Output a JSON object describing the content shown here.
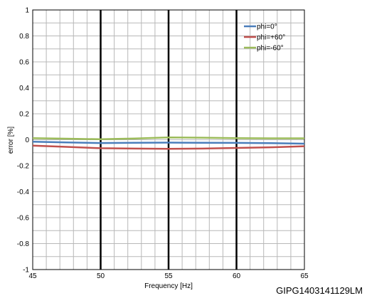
{
  "figure_id": "GIPG1403141129LM",
  "colors": {
    "phi_0": "#4a7ebb",
    "phi_plus60": "#c0504d",
    "phi_minus60": "#9bbb59",
    "major_grid": "#000000",
    "minor_grid": "#b8b8b8"
  },
  "chart_data": {
    "type": "line",
    "title": "",
    "xlabel": "Frequency [Hz]",
    "ylabel": "error [%]",
    "xlim": [
      45,
      65
    ],
    "ylim": [
      -1,
      1
    ],
    "x_ticks": [
      45,
      50,
      55,
      60,
      65
    ],
    "x_tick_labels": [
      "45",
      "50",
      "55",
      "60",
      "65"
    ],
    "y_ticks": [
      1,
      0.8,
      0.6,
      0.4,
      0.2,
      0,
      -0.2,
      -0.4,
      -0.6,
      -0.8,
      -1
    ],
    "y_tick_labels": [
      "1",
      "0.8",
      "0.6",
      "0.4",
      "0.2",
      "0",
      "-0.2",
      "-0.4",
      "-0.6",
      "-0.8",
      "-1"
    ],
    "grid": true,
    "minor_x_step": 1,
    "minor_y_step": 0.1,
    "legend_position": "top-right",
    "series": [
      {
        "name": "phi=0°",
        "color_key": "phi_0",
        "x": [
          45,
          47.5,
          50,
          52.5,
          55,
          57.5,
          60,
          62.5,
          65
        ],
        "y": [
          -0.015,
          -0.02,
          -0.025,
          -0.023,
          -0.022,
          -0.023,
          -0.024,
          -0.026,
          -0.03
        ]
      },
      {
        "name": "phi=+60°",
        "color_key": "phi_plus60",
        "x": [
          45,
          47.5,
          50,
          52.5,
          55,
          57.5,
          60,
          62.5,
          65
        ],
        "y": [
          -0.045,
          -0.055,
          -0.065,
          -0.068,
          -0.07,
          -0.068,
          -0.063,
          -0.058,
          -0.05
        ]
      },
      {
        "name": "phi=-60°",
        "color_key": "phi_minus60",
        "x": [
          45,
          47.5,
          50,
          52.5,
          55,
          57.5,
          60,
          62.5,
          65
        ],
        "y": [
          0.012,
          0.008,
          0.004,
          0.01,
          0.018,
          0.016,
          0.012,
          0.011,
          0.011
        ]
      }
    ]
  }
}
